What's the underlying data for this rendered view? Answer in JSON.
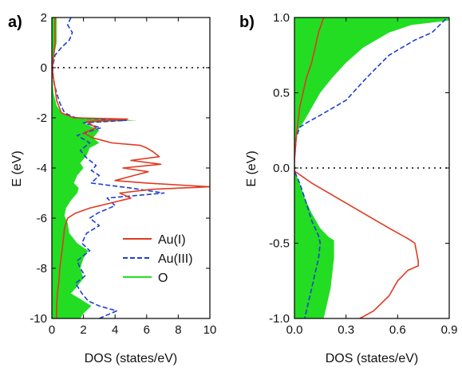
{
  "chart_data": [
    {
      "panel_label": "a)",
      "type": "area",
      "xlabel": "DOS (states/eV)",
      "ylabel": "E (eV)",
      "xlim": [
        0,
        10
      ],
      "ylim": [
        -10,
        2
      ],
      "x_ticks": [
        0,
        2,
        4,
        6,
        8,
        10
      ],
      "y_ticks": [
        2,
        0,
        -2,
        -4,
        -6,
        -8,
        -10
      ],
      "x_tick_labels": [
        "0",
        "2",
        "4",
        "6",
        "8",
        "10"
      ],
      "y_tick_labels": [
        "2",
        "0",
        "-2",
        "-4",
        "-6",
        "-8",
        "-10"
      ],
      "fermi_level": 0,
      "legend": {
        "placement": "bottom-right",
        "entries": [
          "Au(I)",
          "Au(III)",
          "O"
        ]
      },
      "series": [
        {
          "name": "O",
          "style": "filled",
          "color": "#22dd22",
          "points": [
            [
              0.3,
              2
            ],
            [
              0.3,
              1.0
            ],
            [
              0.15,
              0.5
            ],
            [
              0.05,
              0.2
            ],
            [
              0.02,
              0
            ],
            [
              0.05,
              -0.5
            ],
            [
              0.1,
              -1.0
            ],
            [
              0.3,
              -1.5
            ],
            [
              0.6,
              -1.8
            ],
            [
              1.2,
              -1.95
            ],
            [
              3.3,
              -2.05
            ],
            [
              5.4,
              -2.1
            ],
            [
              2.0,
              -2.2
            ],
            [
              3.0,
              -2.5
            ],
            [
              2.6,
              -2.8
            ],
            [
              3.0,
              -3.0
            ],
            [
              2.4,
              -3.2
            ],
            [
              2.2,
              -3.5
            ],
            [
              1.8,
              -3.8
            ],
            [
              2.0,
              -4.0
            ],
            [
              1.6,
              -4.3
            ],
            [
              1.4,
              -4.6
            ],
            [
              1.7,
              -4.8
            ],
            [
              1.6,
              -5.0
            ],
            [
              1.2,
              -5.3
            ],
            [
              0.9,
              -5.6
            ],
            [
              0.8,
              -5.9
            ],
            [
              1.0,
              -6.2
            ],
            [
              1.1,
              -6.6
            ],
            [
              1.6,
              -7.0
            ],
            [
              2.3,
              -7.3
            ],
            [
              2.0,
              -7.6
            ],
            [
              1.8,
              -8.0
            ],
            [
              2.0,
              -8.4
            ],
            [
              1.5,
              -8.8
            ],
            [
              1.2,
              -9.0
            ],
            [
              2.0,
              -9.3
            ],
            [
              2.5,
              -9.5
            ],
            [
              2.0,
              -9.8
            ],
            [
              1.8,
              -10
            ]
          ]
        },
        {
          "name": "Au(III)",
          "style": "dashed",
          "color": "#1f3fd0",
          "points": [
            [
              1.2,
              2
            ],
            [
              1.0,
              1.7
            ],
            [
              1.3,
              1.4
            ],
            [
              1.1,
              1.1
            ],
            [
              0.6,
              0.8
            ],
            [
              0.2,
              0.5
            ],
            [
              0.1,
              0.2
            ],
            [
              0.05,
              0
            ],
            [
              0.1,
              -0.5
            ],
            [
              0.3,
              -1.0
            ],
            [
              0.5,
              -1.4
            ],
            [
              0.8,
              -1.8
            ],
            [
              1.5,
              -2.0
            ],
            [
              4.7,
              -2.1
            ],
            [
              2.0,
              -2.2
            ],
            [
              3.1,
              -2.4
            ],
            [
              1.6,
              -2.7
            ],
            [
              2.4,
              -3.0
            ],
            [
              1.8,
              -3.3
            ],
            [
              2.2,
              -3.6
            ],
            [
              2.8,
              -3.9
            ],
            [
              2.5,
              -4.1
            ],
            [
              3.0,
              -4.3
            ],
            [
              2.5,
              -4.6
            ],
            [
              5.0,
              -4.8
            ],
            [
              7.1,
              -5.0
            ],
            [
              3.5,
              -5.2
            ],
            [
              4.0,
              -5.5
            ],
            [
              2.9,
              -5.8
            ],
            [
              2.4,
              -6.0
            ],
            [
              3.0,
              -6.3
            ],
            [
              2.2,
              -6.6
            ],
            [
              1.9,
              -7.0
            ],
            [
              2.4,
              -7.3
            ],
            [
              1.6,
              -7.7
            ],
            [
              1.8,
              -8.0
            ],
            [
              2.1,
              -8.3
            ],
            [
              1.5,
              -8.6
            ],
            [
              1.9,
              -9.0
            ],
            [
              2.3,
              -9.3
            ],
            [
              3.0,
              -9.5
            ],
            [
              4.1,
              -9.7
            ],
            [
              3.0,
              -10
            ]
          ]
        },
        {
          "name": "Au(I)",
          "style": "solid",
          "color": "#e03a22",
          "points": [
            [
              0.2,
              2
            ],
            [
              0.2,
              1.0
            ],
            [
              0.12,
              0.5
            ],
            [
              0.05,
              0.1
            ],
            [
              0.02,
              0
            ],
            [
              0.1,
              -0.4
            ],
            [
              0.2,
              -0.8
            ],
            [
              0.3,
              -1.3
            ],
            [
              0.6,
              -1.8
            ],
            [
              1.4,
              -2.0
            ],
            [
              4.8,
              -2.05
            ],
            [
              2.2,
              -2.15
            ],
            [
              2.8,
              -2.4
            ],
            [
              2.0,
              -2.6
            ],
            [
              2.6,
              -2.8
            ],
            [
              3.8,
              -3.0
            ],
            [
              5.6,
              -3.1
            ],
            [
              6.0,
              -3.2
            ],
            [
              6.4,
              -3.35
            ],
            [
              6.8,
              -3.55
            ],
            [
              5.0,
              -3.7
            ],
            [
              6.9,
              -3.85
            ],
            [
              4.5,
              -4.0
            ],
            [
              6.1,
              -4.15
            ],
            [
              5.2,
              -4.3
            ],
            [
              4.0,
              -4.5
            ],
            [
              6.0,
              -4.6
            ],
            [
              10.0,
              -4.75
            ],
            [
              6.3,
              -4.85
            ],
            [
              4.3,
              -5.0
            ],
            [
              5.0,
              -5.2
            ],
            [
              3.7,
              -5.4
            ],
            [
              2.4,
              -5.6
            ],
            [
              1.5,
              -5.8
            ],
            [
              1.0,
              -6.0
            ],
            [
              0.8,
              -6.4
            ],
            [
              0.7,
              -7.0
            ],
            [
              0.6,
              -7.5
            ],
            [
              0.5,
              -8.0
            ],
            [
              0.45,
              -8.5
            ],
            [
              0.35,
              -9.0
            ],
            [
              0.3,
              -9.5
            ],
            [
              0.3,
              -10
            ]
          ]
        }
      ]
    },
    {
      "panel_label": "b)",
      "type": "area",
      "xlabel": "DOS (states/eV)",
      "ylabel": "E (eV)",
      "xlim": [
        0,
        0.9
      ],
      "ylim": [
        -1.0,
        1.0
      ],
      "x_ticks": [
        0,
        0.3,
        0.6,
        0.9
      ],
      "y_ticks": [
        1.0,
        0.5,
        0.0,
        -0.5,
        -1.0
      ],
      "x_tick_labels": [
        "0.0",
        "0.3",
        "0.6",
        "0.9"
      ],
      "y_tick_labels": [
        "1.0",
        "0.5",
        "0.0",
        "-0.5",
        "-1.0"
      ],
      "fermi_level": 0,
      "series": [
        {
          "name": "O",
          "style": "filled",
          "color": "#22dd22",
          "points": [
            [
              0.0,
              0.0
            ],
            [
              0.005,
              0.1
            ],
            [
              0.01,
              0.2
            ],
            [
              0.02,
              0.25
            ],
            [
              0.05,
              0.3
            ],
            [
              0.1,
              0.4
            ],
            [
              0.15,
              0.5
            ],
            [
              0.22,
              0.6
            ],
            [
              0.3,
              0.7
            ],
            [
              0.4,
              0.8
            ],
            [
              0.55,
              0.9
            ],
            [
              0.68,
              0.95
            ],
            [
              0.9,
              0.98
            ],
            [
              0.9,
              1.0
            ],
            [
              0.0,
              1.0
            ]
          ]
        },
        {
          "name": "O",
          "style": "filled",
          "color": "#22dd22",
          "points": [
            [
              0.0,
              -0.02
            ],
            [
              0.03,
              -0.1
            ],
            [
              0.06,
              -0.2
            ],
            [
              0.1,
              -0.3
            ],
            [
              0.15,
              -0.4
            ],
            [
              0.2,
              -0.46
            ],
            [
              0.23,
              -0.48
            ],
            [
              0.23,
              -0.6
            ],
            [
              0.22,
              -0.7
            ],
            [
              0.21,
              -0.8
            ],
            [
              0.19,
              -0.9
            ],
            [
              0.17,
              -1.0
            ],
            [
              0.0,
              -1.0
            ]
          ]
        },
        {
          "name": "Au(III)",
          "style": "dashed",
          "color": "#1f3fd0",
          "points": [
            [
              0.88,
              0.99
            ],
            [
              0.8,
              0.9
            ],
            [
              0.7,
              0.85
            ],
            [
              0.55,
              0.75
            ],
            [
              0.42,
              0.6
            ],
            [
              0.3,
              0.45
            ],
            [
              0.15,
              0.35
            ],
            [
              0.07,
              0.3
            ],
            [
              0.03,
              0.27
            ],
            [
              0.01,
              0.2
            ],
            [
              0.0,
              0.05
            ],
            [
              0.0,
              -0.02
            ],
            [
              0.03,
              -0.1
            ],
            [
              0.06,
              -0.2
            ],
            [
              0.1,
              -0.35
            ],
            [
              0.14,
              -0.45
            ],
            [
              0.15,
              -0.5
            ],
            [
              0.14,
              -0.6
            ],
            [
              0.12,
              -0.7
            ],
            [
              0.1,
              -0.8
            ],
            [
              0.08,
              -0.9
            ],
            [
              0.06,
              -1.0
            ]
          ]
        },
        {
          "name": "Au(I)",
          "style": "solid",
          "color": "#e03a22",
          "points": [
            [
              0.17,
              1.0
            ],
            [
              0.14,
              0.9
            ],
            [
              0.12,
              0.8
            ],
            [
              0.1,
              0.7
            ],
            [
              0.07,
              0.6
            ],
            [
              0.05,
              0.5
            ],
            [
              0.03,
              0.4
            ],
            [
              0.02,
              0.3
            ],
            [
              0.01,
              0.2
            ],
            [
              0.0,
              0.05
            ],
            [
              0.0,
              -0.02
            ],
            [
              0.1,
              -0.1
            ],
            [
              0.25,
              -0.2
            ],
            [
              0.4,
              -0.3
            ],
            [
              0.55,
              -0.4
            ],
            [
              0.66,
              -0.47
            ],
            [
              0.7,
              -0.5
            ],
            [
              0.72,
              -0.62
            ],
            [
              0.72,
              -0.65
            ],
            [
              0.66,
              -0.68
            ],
            [
              0.6,
              -0.75
            ],
            [
              0.55,
              -0.85
            ],
            [
              0.46,
              -0.95
            ],
            [
              0.38,
              -1.0
            ]
          ]
        }
      ]
    }
  ]
}
